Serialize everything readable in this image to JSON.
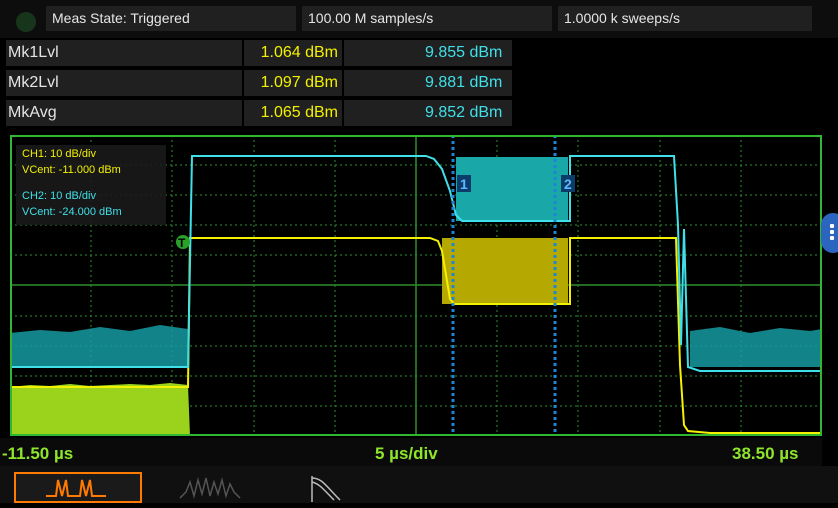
{
  "status": {
    "meas_state": "Meas State: Triggered",
    "sample_rate": "100.00 M samples/s",
    "sweep_rate": "1.0000 k sweeps/s"
  },
  "markers": [
    {
      "name": "Mk1Lvl",
      "ch1": "1.064 dBm",
      "ch2": "9.855 dBm"
    },
    {
      "name": "Mk2Lvl",
      "ch1": "1.097 dBm",
      "ch2": "9.881 dBm"
    },
    {
      "name": "MkAvg",
      "ch1": "1.065 dBm",
      "ch2": "9.852 dBm"
    }
  ],
  "scope": {
    "ch1_scale": "CH1: 10 dB/div",
    "ch1_vcent": "VCent: -11.000 dBm",
    "ch2_scale": "CH2: 10 dB/div",
    "ch2_vcent": "VCent: -24.000 dBm",
    "marker1_label": "1",
    "marker2_label": "2",
    "trigger_label": "T"
  },
  "axis": {
    "start": "-11.50 µs",
    "per_div": "5 µs/div",
    "end": "38.50 µs"
  },
  "colors": {
    "ch1": "#f3f100",
    "ch2": "#3fe0e8",
    "grid": "#2e8f2e",
    "accent": "#ff7a00",
    "axis_text": "#8ee62a"
  },
  "icons": [
    "pulse-view-icon",
    "spectrum-view-icon",
    "ccdf-view-icon",
    "more-menu-icon"
  ]
}
